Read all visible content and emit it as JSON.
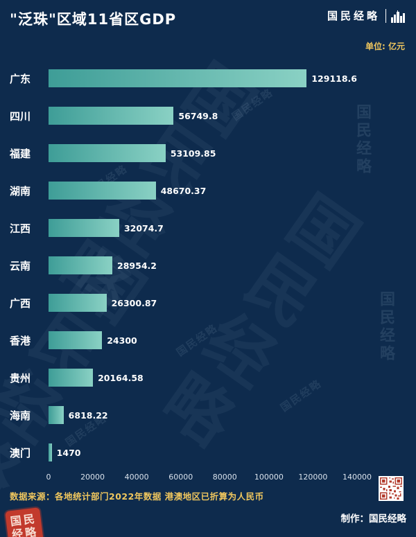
{
  "header": {
    "title": "\"泛珠\"区域11省区GDP",
    "brand": "国民经略",
    "unit_label": "单位: 亿元"
  },
  "chart_data": {
    "type": "bar",
    "orientation": "horizontal",
    "title": "\"泛珠\"区域11省区GDP",
    "unit": "亿元",
    "categories": [
      "广东",
      "四川",
      "福建",
      "湖南",
      "江西",
      "云南",
      "广西",
      "香港",
      "贵州",
      "海南",
      "澳门"
    ],
    "values": [
      129118.6,
      56749.8,
      53109.85,
      48670.37,
      32074.7,
      28954.2,
      26300.87,
      24300,
      20164.58,
      6818.22,
      1470
    ],
    "value_labels": [
      "129118.6",
      "56749.8",
      "53109.85",
      "48670.37",
      "32074.7",
      "28954.2",
      "26300.87",
      "24300",
      "20164.58",
      "6818.22",
      "1470"
    ],
    "xlim": [
      0,
      140000
    ],
    "x_ticks": [
      "0",
      "20000",
      "40000",
      "60000",
      "80000",
      "100000",
      "120000",
      "140000"
    ],
    "grid": "off",
    "legend": "none"
  },
  "footer": {
    "source": "数据来源：各地统计部门2022年数据  港澳地区已折算为人民币",
    "credit": "制作：国民经略",
    "seal_line1": "国民",
    "seal_line2": "经略"
  },
  "watermark": {
    "text": "国民经略"
  },
  "colors": {
    "background": "#0e2b4d",
    "bar_start": "#3e9d97",
    "bar_end": "#8ad1c4",
    "accent_yellow": "#f0c75e",
    "seal_red": "#c23a2c",
    "text": "#ffffff",
    "tick_text": "#d9e2ec"
  }
}
